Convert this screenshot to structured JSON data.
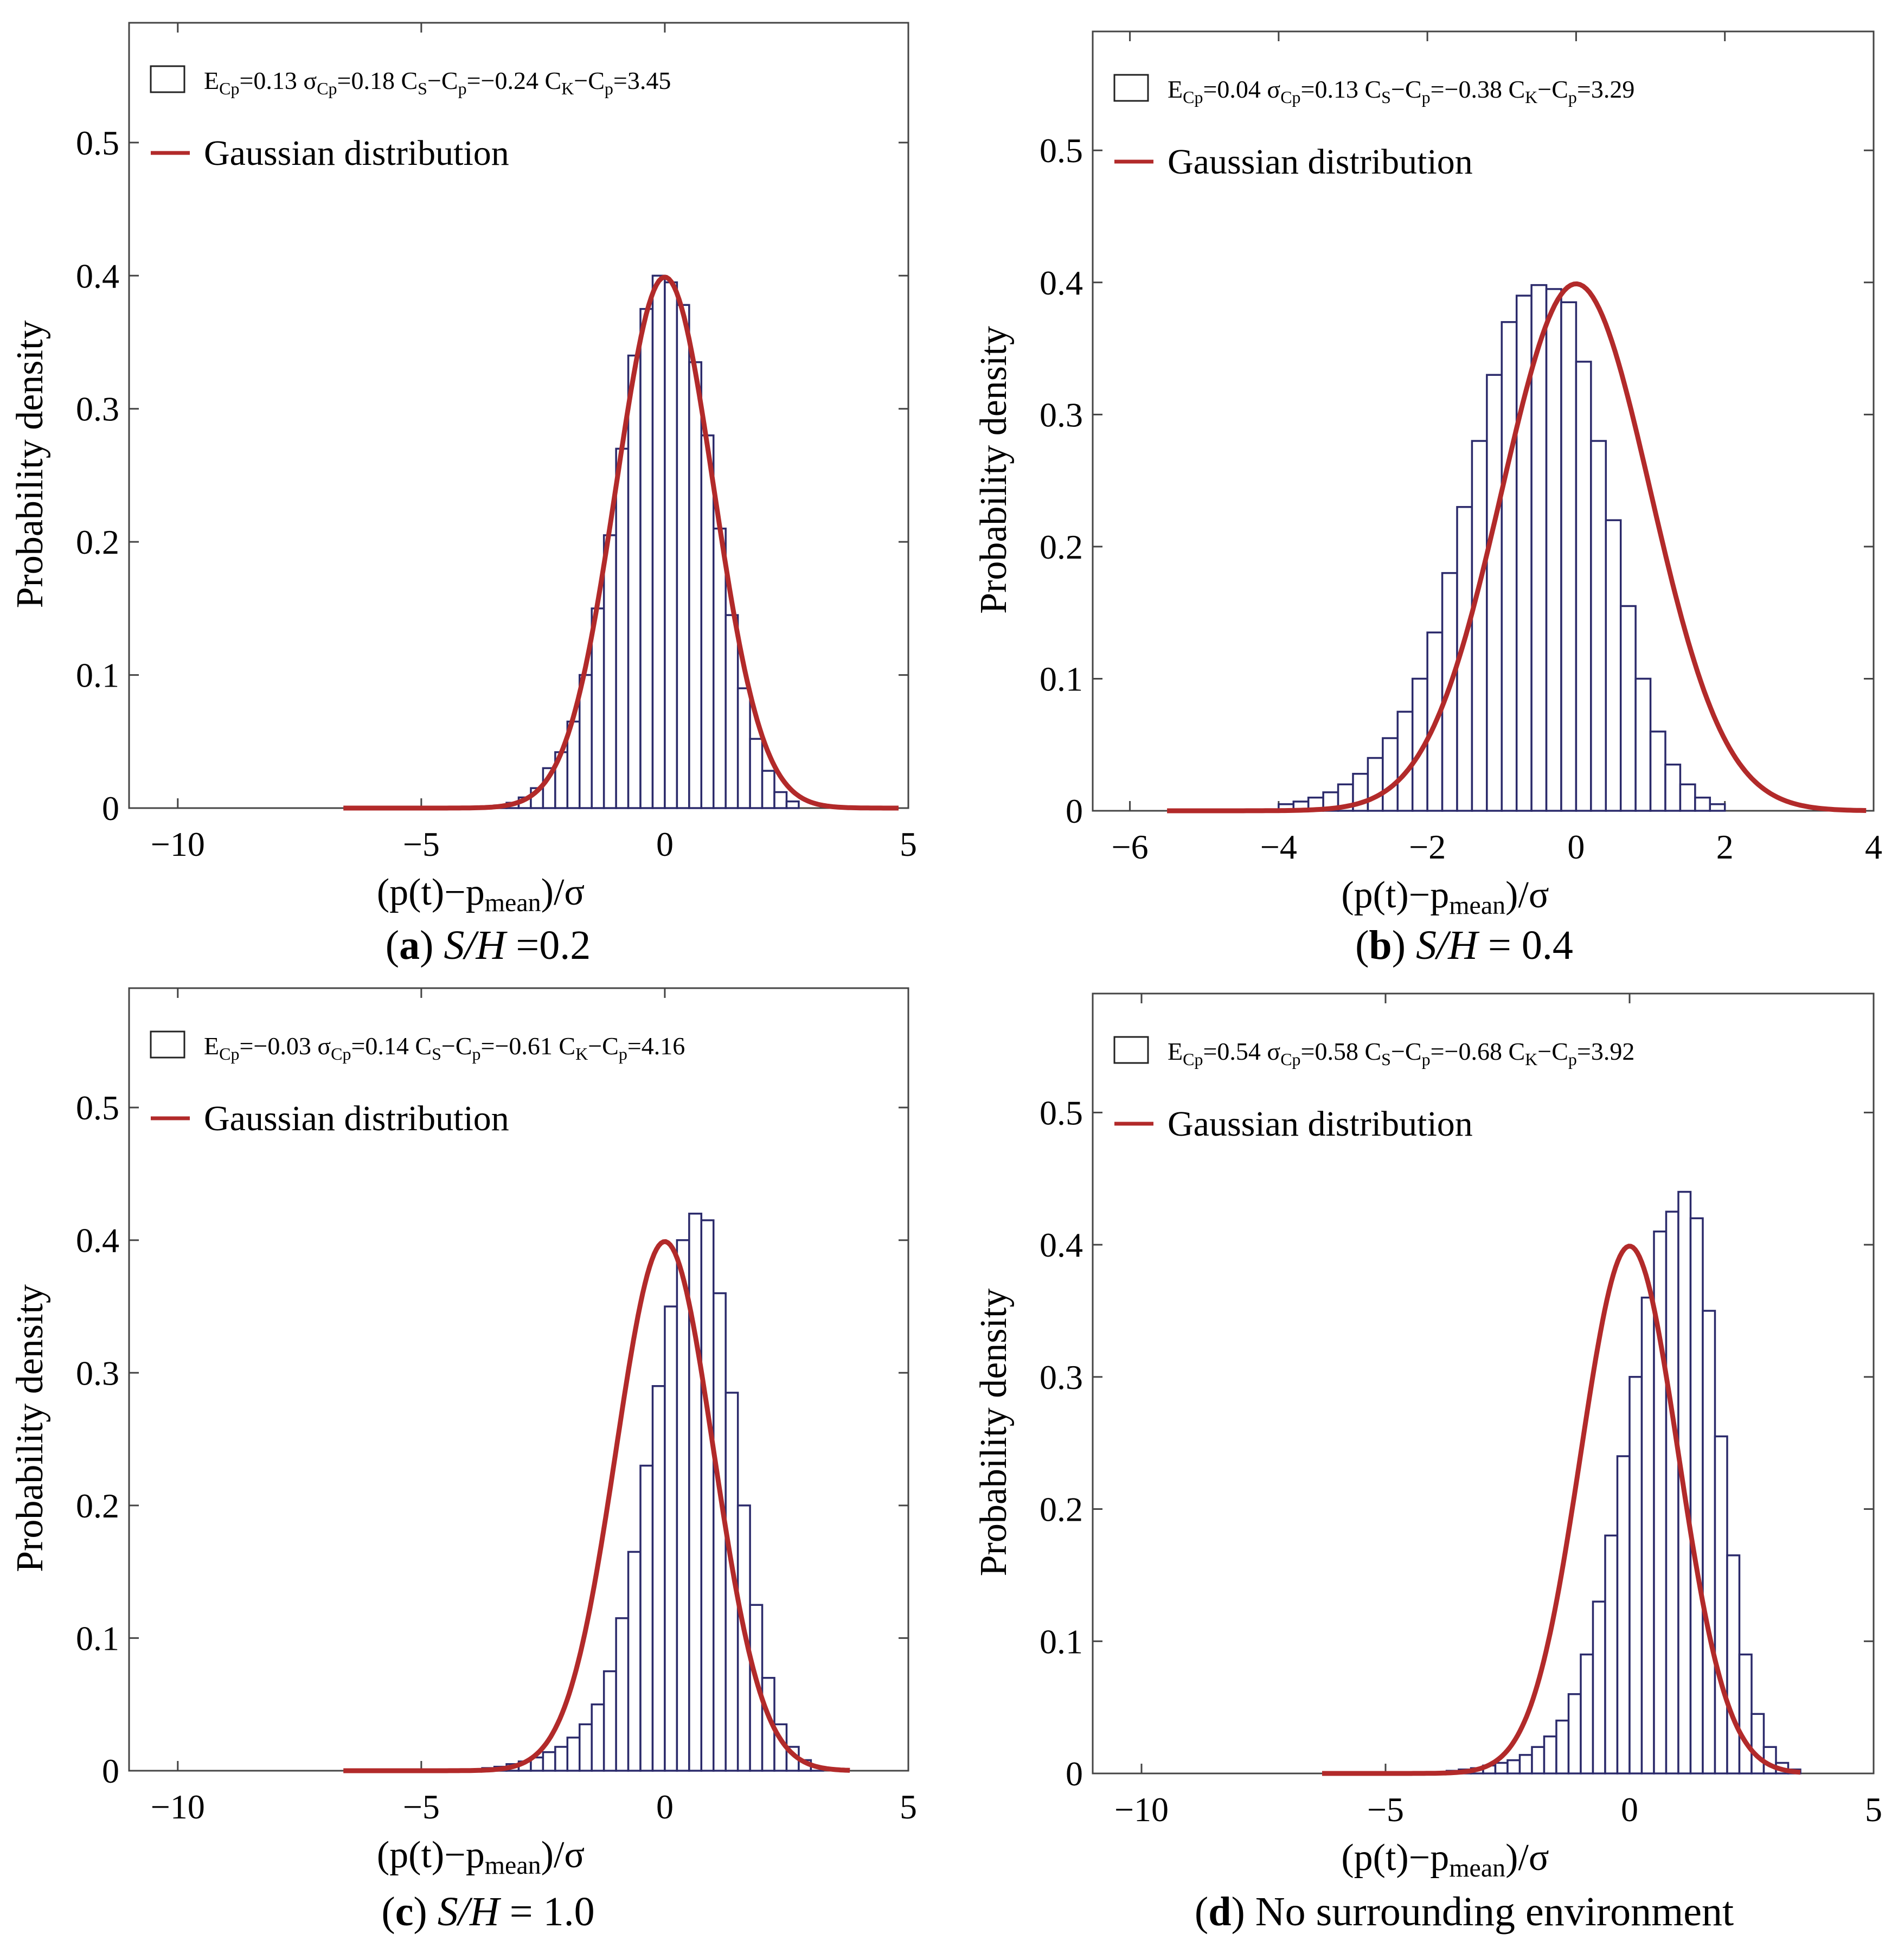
{
  "figure": {
    "common": {
      "xlabel": "(p(t)−p",
      "xlabel_sub": "mean",
      "xlabel_tail": ")/σ",
      "ylabel": "Probability density",
      "gaussian_legend": "Gaussian distribution"
    },
    "colors": {
      "hist_edge": "#2b2a6b",
      "gaussian": "#b22a2a",
      "axes": "#444444"
    },
    "panels": [
      {
        "letter": "a",
        "caption_italic": "S/H",
        "caption_rest": " =0.2",
        "stats": {
          "E": "=0.13",
          "sigma": "=0.18",
          "Cs": "=−0.24",
          "Ck": "=3.45"
        },
        "chart_data": {
          "type": "bar",
          "xlim": [
            -11,
            5
          ],
          "ylim": [
            0,
            0.59
          ],
          "xticks": [
            -10,
            -5,
            0,
            5
          ],
          "yticks": [
            0,
            0.1,
            0.2,
            0.3,
            0.4,
            0.5
          ],
          "bin_width": 0.25,
          "bin_start": -3.5,
          "values": [
            0.002,
            0.004,
            0.008,
            0.015,
            0.03,
            0.042,
            0.065,
            0.1,
            0.15,
            0.205,
            0.27,
            0.34,
            0.375,
            0.4,
            0.395,
            0.378,
            0.335,
            0.28,
            0.21,
            0.145,
            0.09,
            0.052,
            0.028,
            0.012,
            0.005
          ],
          "gaussian": {
            "mean": 0,
            "sd": 1,
            "x_range": [
              -6.6,
              4.8
            ]
          }
        }
      },
      {
        "letter": "b",
        "caption_italic": "S/H",
        "caption_rest": " = 0.4",
        "stats": {
          "E": "=0.04",
          "sigma": "=0.13",
          "Cs": "=−0.38",
          "Ck": "=3.29"
        },
        "chart_data": {
          "type": "bar",
          "xlim": [
            -6.5,
            4
          ],
          "ylim": [
            0,
            0.59
          ],
          "xticks": [
            -6,
            -4,
            -2,
            0,
            2,
            4
          ],
          "yticks": [
            0,
            0.1,
            0.2,
            0.3,
            0.4,
            0.5
          ],
          "bin_width": 0.2,
          "bin_start": -4,
          "values": [
            0.005,
            0.007,
            0.01,
            0.014,
            0.02,
            0.028,
            0.04,
            0.055,
            0.075,
            0.1,
            0.135,
            0.18,
            0.23,
            0.28,
            0.33,
            0.37,
            0.39,
            0.398,
            0.395,
            0.385,
            0.34,
            0.28,
            0.22,
            0.155,
            0.1,
            0.06,
            0.035,
            0.02,
            0.01,
            0.005
          ],
          "gaussian": {
            "mean": 0,
            "sd": 1,
            "x_range": [
              -5.5,
              3.9
            ]
          }
        }
      },
      {
        "letter": "c",
        "caption_italic": "S/H",
        "caption_rest": " = 1.0",
        "stats": {
          "E": "=−0.03",
          "sigma": "=0.14",
          "Cs": "=−0.61",
          "Ck": "=4.16"
        },
        "chart_data": {
          "type": "bar",
          "xlim": [
            -11,
            5
          ],
          "ylim": [
            0,
            0.59
          ],
          "xticks": [
            -10,
            -5,
            0,
            5
          ],
          "yticks": [
            0,
            0.1,
            0.2,
            0.3,
            0.4,
            0.5
          ],
          "bin_width": 0.25,
          "bin_start": -3.75,
          "values": [
            0.002,
            0.003,
            0.005,
            0.007,
            0.01,
            0.014,
            0.018,
            0.025,
            0.035,
            0.05,
            0.075,
            0.115,
            0.165,
            0.23,
            0.29,
            0.35,
            0.4,
            0.42,
            0.415,
            0.36,
            0.285,
            0.2,
            0.125,
            0.07,
            0.035,
            0.018,
            0.008,
            0.003
          ],
          "gaussian": {
            "mean": 0,
            "sd": 1,
            "x_range": [
              -6.6,
              3.8
            ]
          }
        }
      },
      {
        "letter": "d",
        "caption_italic": "",
        "caption_rest": " No surrounding environment",
        "stats": {
          "E": "=0.54",
          "sigma": "=0.58",
          "Cs": "=−0.68",
          "Ck": "=3.92"
        },
        "chart_data": {
          "type": "bar",
          "xlim": [
            -11,
            5
          ],
          "ylim": [
            0,
            0.59
          ],
          "xticks": [
            -10,
            -5,
            0,
            5
          ],
          "yticks": [
            0,
            0.1,
            0.2,
            0.3,
            0.4,
            0.5
          ],
          "bin_width": 0.25,
          "bin_start": -3.75,
          "values": [
            0.002,
            0.003,
            0.004,
            0.006,
            0.008,
            0.01,
            0.014,
            0.02,
            0.028,
            0.04,
            0.06,
            0.09,
            0.13,
            0.18,
            0.24,
            0.3,
            0.36,
            0.41,
            0.425,
            0.44,
            0.42,
            0.35,
            0.255,
            0.165,
            0.09,
            0.045,
            0.02,
            0.008,
            0.003
          ],
          "gaussian": {
            "mean": 0,
            "sd": 1,
            "x_range": [
              -6.3,
              3.5
            ]
          }
        }
      }
    ]
  }
}
